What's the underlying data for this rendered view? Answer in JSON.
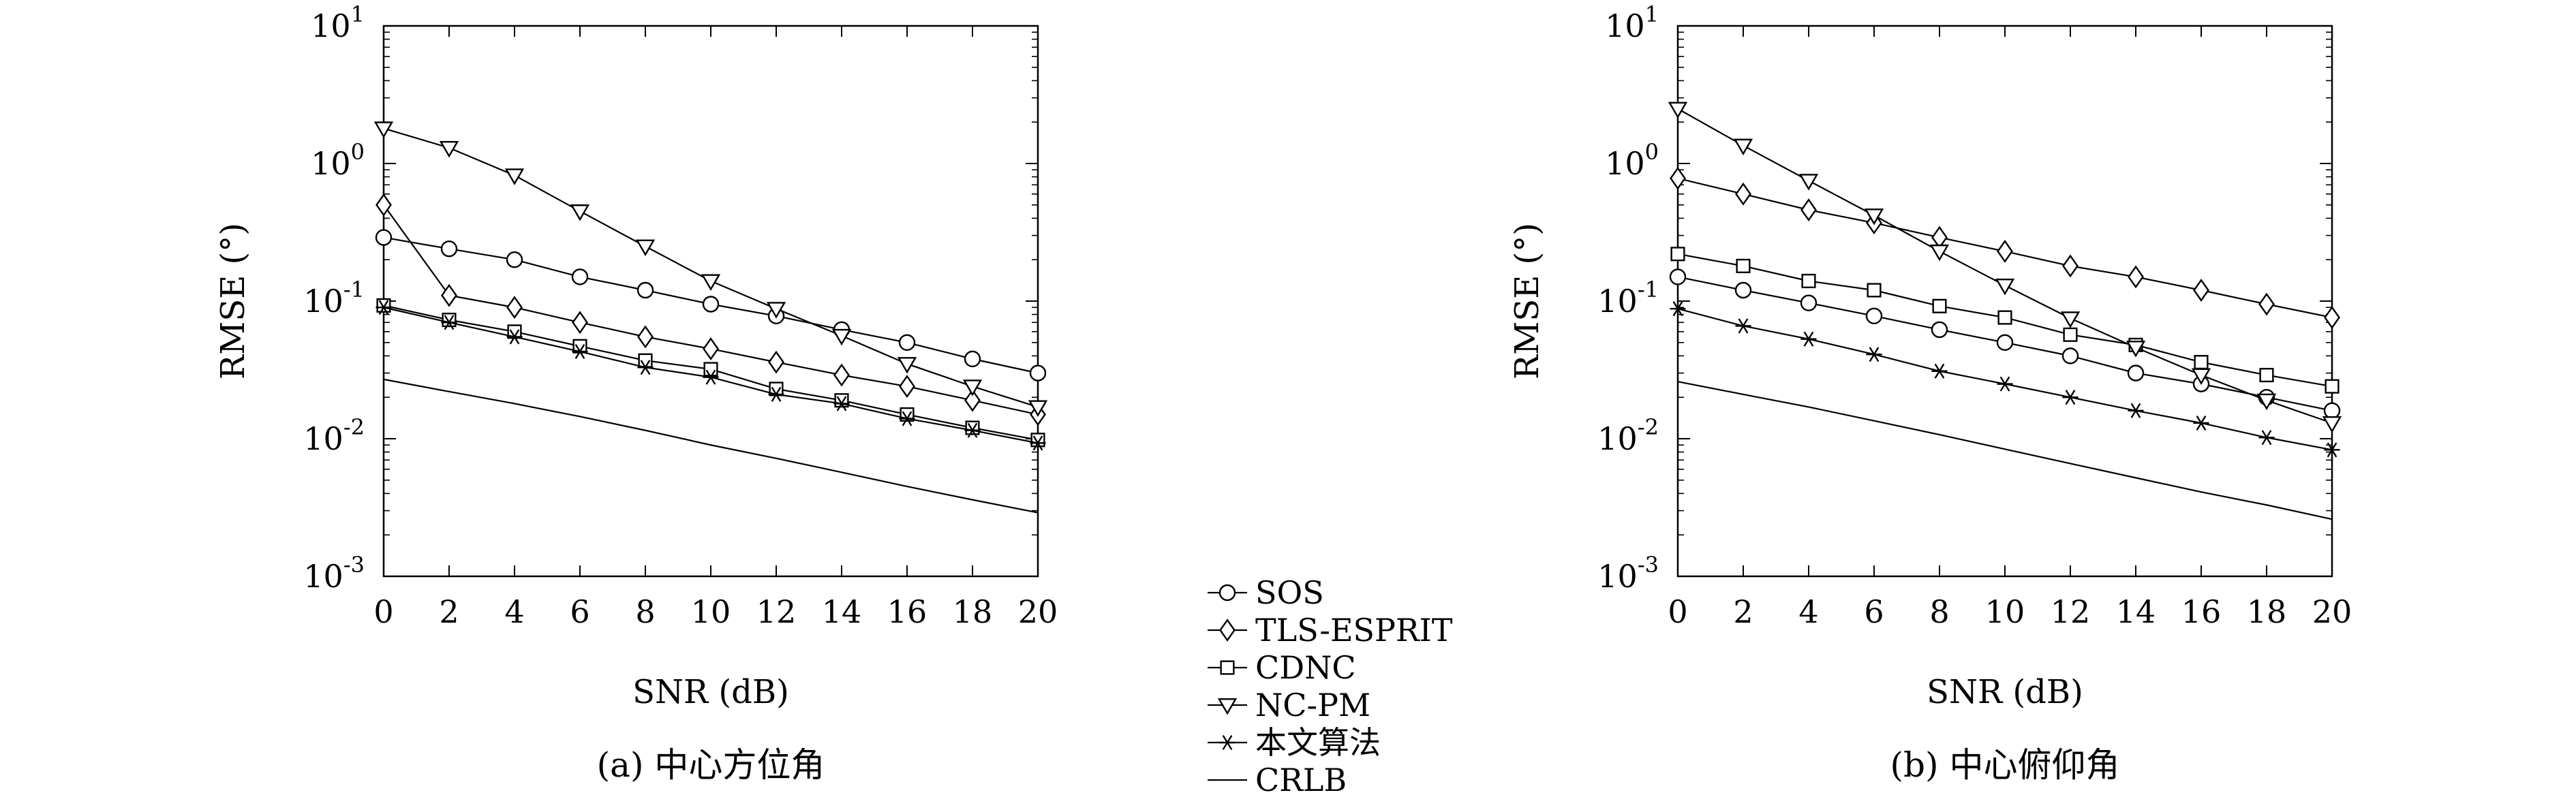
{
  "chart_data": [
    {
      "type": "line",
      "caption": "(a) 中心方位角",
      "xlabel": "SNR (dB)",
      "ylabel": "RMSE (°)",
      "x": [
        0,
        2,
        4,
        6,
        8,
        10,
        12,
        14,
        16,
        18,
        20
      ],
      "xlim": [
        0,
        20
      ],
      "ylim": [
        0.001,
        10
      ],
      "yscale": "log",
      "grid": false,
      "series": [
        {
          "name": "SOS",
          "marker": "circle",
          "values": [
            0.29,
            0.24,
            0.2,
            0.15,
            0.12,
            0.095,
            0.078,
            0.062,
            0.05,
            0.038,
            0.03
          ]
        },
        {
          "name": "TLS-ESPRIT",
          "marker": "diamond",
          "values": [
            0.5,
            0.11,
            0.09,
            0.07,
            0.055,
            0.045,
            0.036,
            0.029,
            0.024,
            0.019,
            0.015
          ]
        },
        {
          "name": "CDNC",
          "marker": "square",
          "values": [
            0.093,
            0.073,
            0.06,
            0.047,
            0.037,
            0.032,
            0.023,
            0.019,
            0.015,
            0.012,
            0.0098
          ]
        },
        {
          "name": "NC-PM",
          "marker": "triangle-down",
          "values": [
            1.8,
            1.3,
            0.82,
            0.45,
            0.25,
            0.14,
            0.088,
            0.056,
            0.035,
            0.024,
            0.017
          ]
        },
        {
          "name": "本文算法",
          "marker": "asterisk",
          "values": [
            0.09,
            0.07,
            0.055,
            0.043,
            0.033,
            0.028,
            0.021,
            0.018,
            0.014,
            0.0115,
            0.0093
          ]
        },
        {
          "name": "CRLB",
          "marker": "none",
          "values": [
            0.027,
            0.022,
            0.018,
            0.0145,
            0.0115,
            0.009,
            0.0072,
            0.0057,
            0.0045,
            0.0036,
            0.0029
          ]
        }
      ]
    },
    {
      "type": "line",
      "caption": "(b) 中心俯仰角",
      "xlabel": "SNR (dB)",
      "ylabel": "RMSE (°)",
      "x": [
        0,
        2,
        4,
        6,
        8,
        10,
        12,
        14,
        16,
        18,
        20
      ],
      "xlim": [
        0,
        20
      ],
      "ylim": [
        0.001,
        10
      ],
      "yscale": "log",
      "grid": false,
      "series": [
        {
          "name": "SOS",
          "marker": "circle",
          "values": [
            0.15,
            0.12,
            0.097,
            0.078,
            0.062,
            0.05,
            0.04,
            0.03,
            0.025,
            0.02,
            0.016
          ]
        },
        {
          "name": "TLS-ESPRIT",
          "marker": "diamond",
          "values": [
            0.78,
            0.6,
            0.46,
            0.37,
            0.29,
            0.23,
            0.18,
            0.15,
            0.12,
            0.095,
            0.076
          ]
        },
        {
          "name": "CDNC",
          "marker": "square",
          "values": [
            0.22,
            0.18,
            0.14,
            0.12,
            0.092,
            0.076,
            0.057,
            0.048,
            0.036,
            0.029,
            0.024
          ]
        },
        {
          "name": "NC-PM",
          "marker": "triangle-down",
          "values": [
            2.5,
            1.35,
            0.75,
            0.42,
            0.23,
            0.13,
            0.075,
            0.046,
            0.029,
            0.019,
            0.013
          ]
        },
        {
          "name": "本文算法",
          "marker": "asterisk",
          "values": [
            0.088,
            0.066,
            0.053,
            0.041,
            0.031,
            0.025,
            0.02,
            0.016,
            0.013,
            0.0102,
            0.0083
          ]
        },
        {
          "name": "CRLB",
          "marker": "none",
          "values": [
            0.026,
            0.021,
            0.017,
            0.0135,
            0.0107,
            0.0084,
            0.0066,
            0.0052,
            0.0041,
            0.0033,
            0.0026
          ]
        }
      ]
    }
  ],
  "xticks": [
    "0",
    "2",
    "4",
    "6",
    "8",
    "10",
    "12",
    "14",
    "16",
    "18",
    "20"
  ],
  "yticks": [
    {
      "base": "10",
      "exp": "-3"
    },
    {
      "base": "10",
      "exp": "-2"
    },
    {
      "base": "10",
      "exp": "-1"
    },
    {
      "base": "10",
      "exp": "0"
    },
    {
      "base": "10",
      "exp": "1"
    }
  ],
  "legend": {
    "placement": "between panels, bottom",
    "entries": [
      "SOS",
      "TLS-ESPRIT",
      "CDNC",
      "NC-PM",
      "本文算法",
      "CRLB"
    ]
  }
}
